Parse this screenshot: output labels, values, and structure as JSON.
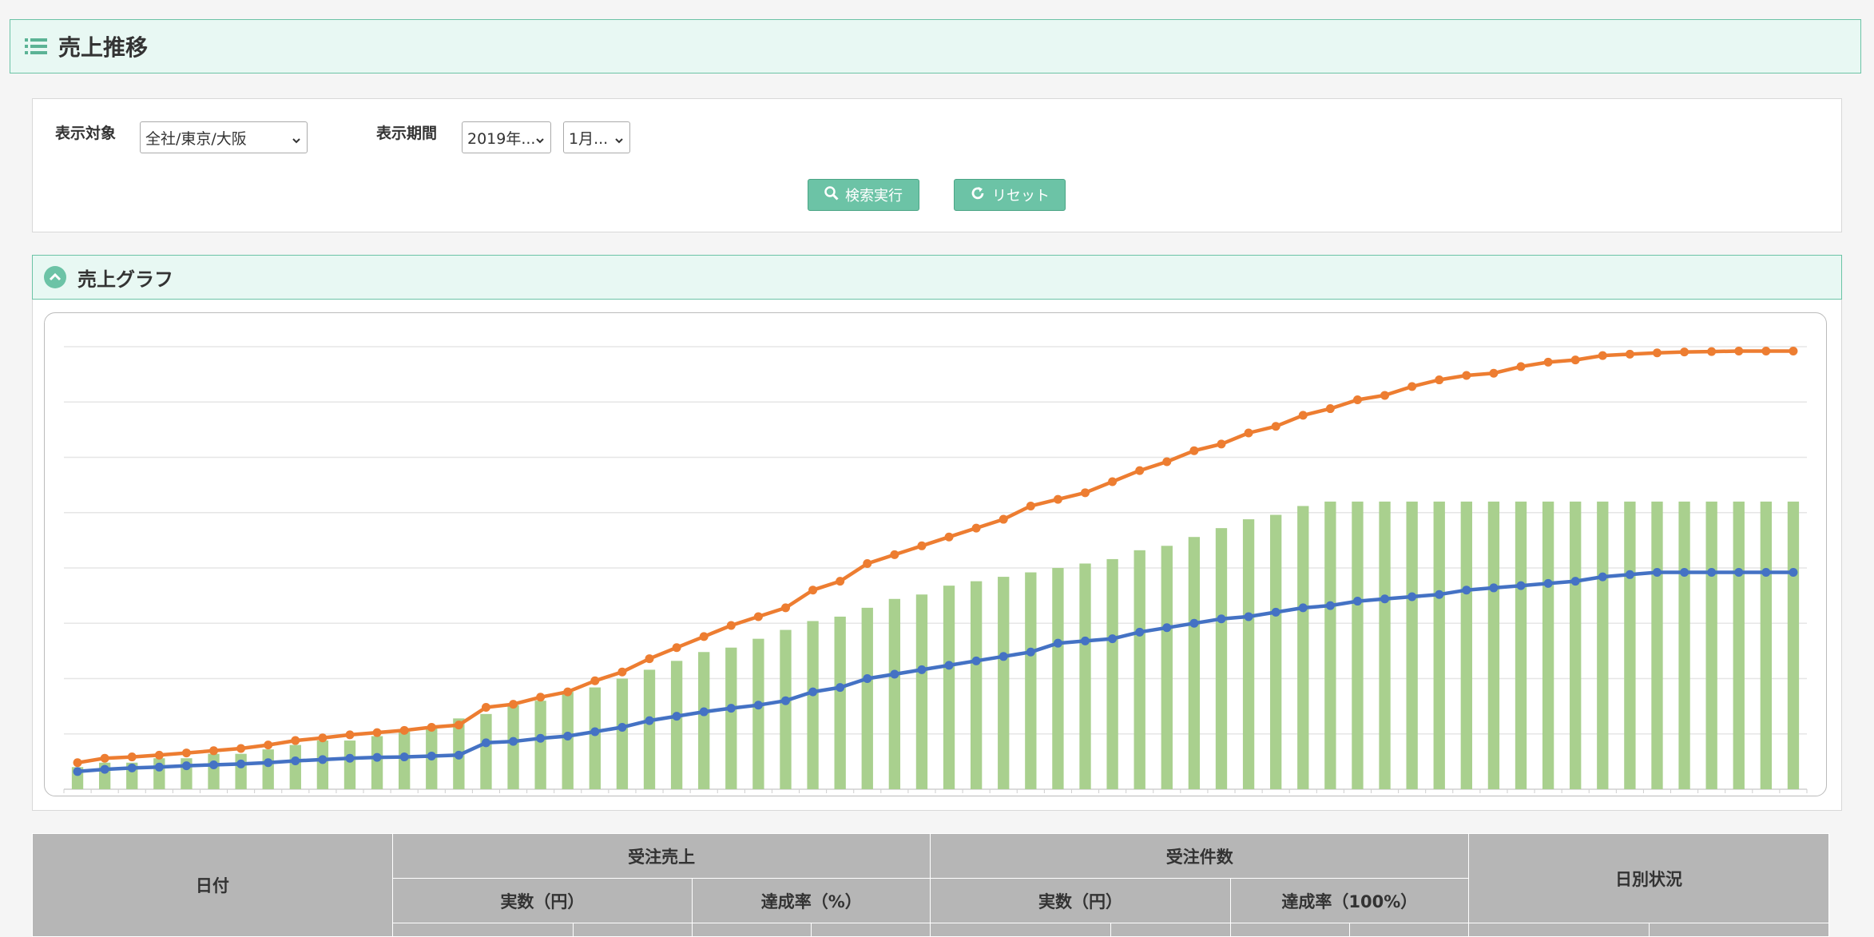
{
  "page": {
    "title": "売上推移",
    "icon": "list-icon"
  },
  "search": {
    "target_label": "表示対象",
    "target_value": "全社/東京/大阪",
    "period_label": "表示期間",
    "year_value": "2019年...",
    "month_value": "1月...",
    "search_button": "検索実行",
    "reset_button": "リセット"
  },
  "graph": {
    "title": "売上グラフ"
  },
  "colors": {
    "accent": "#6cc3a6",
    "header_bg": "#e8f8f3",
    "blue": "#4472c4",
    "orange": "#ed7d31",
    "green": "#a9d08e",
    "table_header": "#b6b6b6"
  },
  "chart_data": {
    "type": "bar",
    "count": 64,
    "grid": true,
    "series": [
      {
        "type": "bar",
        "values": [
          5,
          6,
          6,
          7,
          7,
          8,
          8,
          9,
          10,
          11,
          11,
          12,
          13,
          14,
          16,
          17,
          19,
          20,
          22,
          23,
          25,
          27,
          29,
          31,
          32,
          34,
          36,
          38,
          39,
          41,
          43,
          44,
          46,
          47,
          48,
          49,
          50,
          51,
          52,
          54,
          55,
          57,
          59,
          61,
          62,
          64,
          65,
          65,
          65,
          65,
          65,
          65,
          65,
          65,
          65,
          65,
          65,
          65,
          65,
          65,
          65,
          65,
          65,
          65
        ]
      },
      {
        "type": "line",
        "values": [
          4,
          4.5,
          4.8,
          5,
          5.3,
          5.5,
          5.7,
          6,
          6.4,
          6.7,
          7,
          7.2,
          7.3,
          7.5,
          7.7,
          10.5,
          10.8,
          11.5,
          12,
          13,
          14,
          15.5,
          16.5,
          17.5,
          18.3,
          19,
          20,
          22,
          23,
          25,
          26,
          27,
          28,
          29,
          30,
          31,
          33,
          33.5,
          34,
          35.5,
          36.5,
          37.5,
          38.5,
          39,
          40,
          41,
          41.5,
          42.5,
          43,
          43.5,
          44,
          45,
          45.5,
          46,
          46.5,
          47,
          48,
          48.5,
          49,
          49,
          49,
          49,
          49,
          49
        ]
      },
      {
        "type": "line",
        "values": [
          6,
          7,
          7.3,
          7.7,
          8.2,
          8.7,
          9.2,
          10,
          11,
          11.6,
          12.3,
          12.8,
          13.3,
          14,
          14.5,
          18.5,
          19.2,
          20.8,
          22,
          24.5,
          26.5,
          29.5,
          32,
          34.5,
          37,
          39,
          41,
          45,
          47,
          51,
          53,
          55,
          57,
          59,
          61,
          64,
          65.5,
          67,
          69.5,
          72,
          74,
          76.5,
          78,
          80.5,
          82,
          84.5,
          86,
          88,
          89,
          91,
          92.5,
          93.5,
          94,
          95.5,
          96.5,
          97,
          98,
          98.3,
          98.6,
          98.8,
          98.9,
          99,
          99,
          99
        ]
      }
    ]
  },
  "table": {
    "date_header": "日付",
    "sales_header": "受注売上",
    "count_header": "受注件数",
    "daily_header": "日別状況",
    "sales_actual": "実数（円）",
    "sales_rate": "達成率（%）",
    "count_actual": "実数（円）",
    "count_rate": "達成率（100%）"
  }
}
